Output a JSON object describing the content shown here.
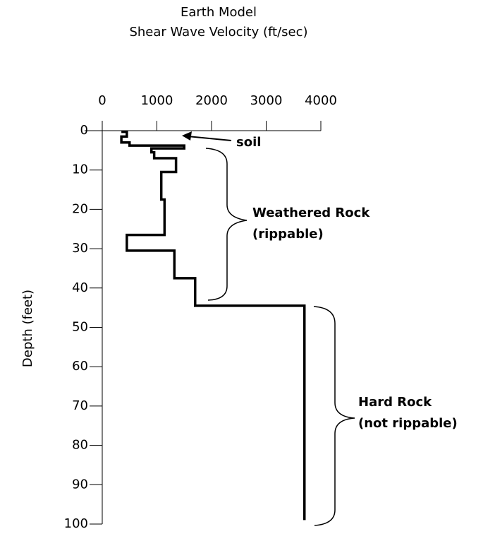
{
  "chart_data": {
    "type": "line",
    "title": "Earth Model",
    "subtitle": "Shear Wave Velocity (ft/sec)",
    "y_label": "Depth (feet)",
    "xlim": [
      0,
      4000
    ],
    "xticks": [
      0,
      1000,
      2000,
      3000,
      4000
    ],
    "ylim": [
      0,
      100
    ],
    "yticks": [
      0,
      10,
      20,
      30,
      40,
      50,
      60,
      70,
      80,
      90,
      100
    ],
    "y_inverted": true,
    "series": [
      {
        "color": "#000000",
        "x": [
          350,
          450,
          450,
          350,
          350,
          500,
          500,
          1500,
          1500,
          900,
          900,
          950,
          950,
          1350,
          1350,
          1080,
          1080,
          1140,
          1140,
          450,
          450,
          1320,
          1320,
          1700,
          1700,
          3700,
          3700
        ],
        "y": [
          0.3,
          0.3,
          1.5,
          1.5,
          3,
          3,
          3.8,
          3.8,
          4.5,
          4.5,
          5.5,
          5.5,
          7,
          7,
          10.5,
          10.5,
          17.5,
          17.5,
          26.5,
          26.5,
          30.5,
          30.5,
          37.5,
          37.5,
          44.5,
          44.5,
          99
        ]
      }
    ],
    "annotations": [
      {
        "lines": [
          "soil"
        ]
      },
      {
        "lines": [
          "Weathered Rock",
          "(rippable)"
        ]
      },
      {
        "lines": [
          "Hard Rock",
          "(not rippable)"
        ]
      }
    ]
  }
}
